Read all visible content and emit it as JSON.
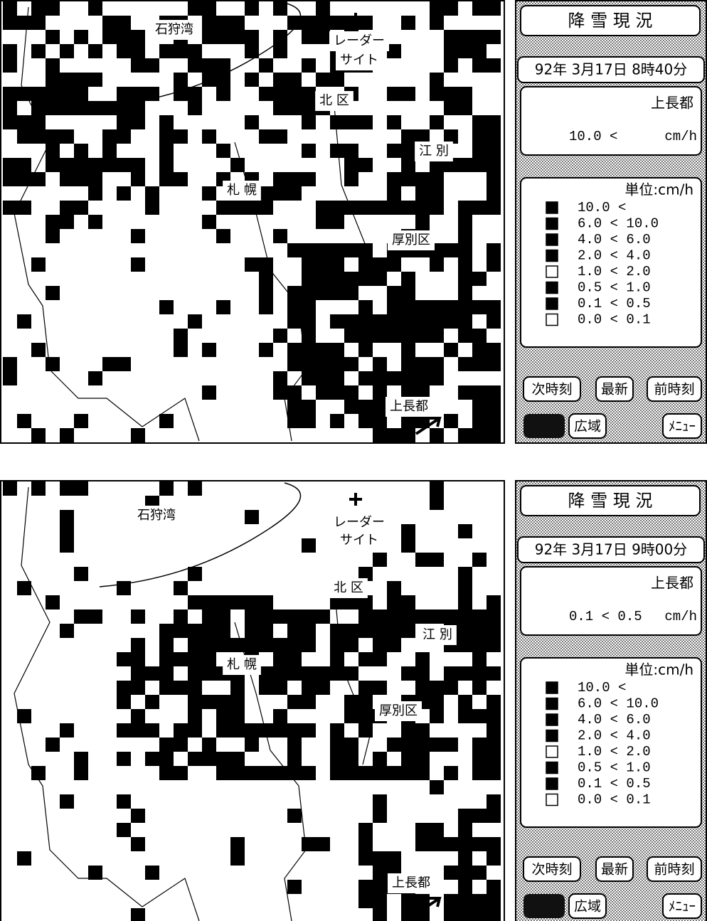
{
  "screens": [
    {
      "map": {
        "labels": [
          "石狩湾",
          "レーダー",
          "サイト",
          "北 区",
          "江 別",
          "札 幌",
          "厚別区",
          "上長都"
        ]
      },
      "panel": {
        "title": "降 雪 現 況",
        "datetime": "92年 3月17日 8時40分",
        "location": "上長都",
        "reading": {
          "value": "10.0 <",
          "unit": "cm/h"
        },
        "unit_label": "単位:cm/h",
        "legend": [
          "10.0 <",
          "6.0 < 10.0",
          "4.0 < 6.0",
          "2.0 < 4.0",
          "1.0 < 2.0",
          "0.5 < 1.0",
          "0.1 < 0.5",
          "0.0 < 0.1"
        ],
        "buttons": [
          "次時刻",
          "最新",
          "前時刻",
          "広域",
          "ﾒﾆｭｰ"
        ]
      }
    },
    {
      "map": {
        "labels": [
          "石狩湾",
          "レーダー",
          "サイト",
          "北 区",
          "江 別",
          "札 幌",
          "厚別区",
          "上長都"
        ]
      },
      "panel": {
        "title": "降 雪 現 況",
        "datetime": "92年 3月17日 9時00分",
        "location": "上長都",
        "reading": {
          "value": "0.1 < 0.5",
          "unit": "cm/h"
        },
        "unit_label": "単位:cm/h",
        "legend": [
          "10.0 <",
          "6.0 < 10.0",
          "4.0 < 6.0",
          "2.0 < 4.0",
          "1.0 < 2.0",
          "0.5 < 1.0",
          "0.1 < 0.5",
          "0.0 < 0.1"
        ],
        "buttons": [
          "次時刻",
          "最新",
          "前時刻",
          "広域",
          "ﾒﾆｭｰ"
        ]
      }
    }
  ]
}
